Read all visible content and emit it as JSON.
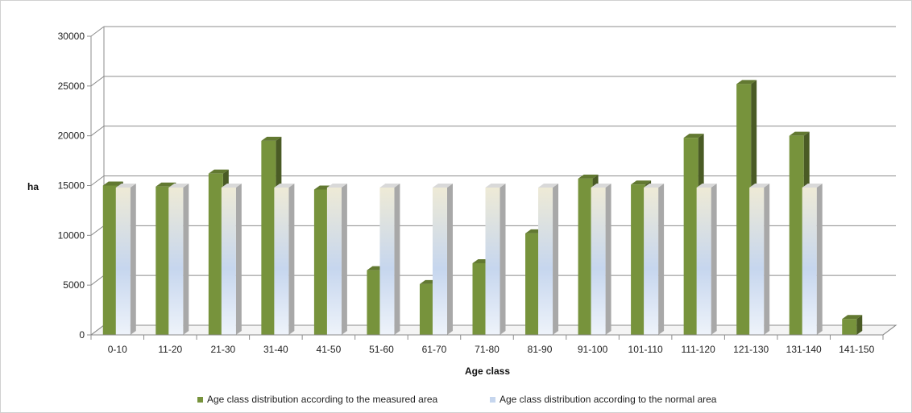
{
  "chart_data": {
    "type": "bar",
    "title": "",
    "xlabel": "Age class",
    "ylabel": "ha",
    "ylim": [
      0,
      30000
    ],
    "yticks": [
      0,
      5000,
      10000,
      15000,
      20000,
      25000,
      30000
    ],
    "grid": true,
    "legend_position": "bottom",
    "categories": [
      "0-10",
      "11-20",
      "21-30",
      "31-40",
      "41-50",
      "51-60",
      "61-70",
      "71-80",
      "81-90",
      "91-100",
      "101-110",
      "111-120",
      "121-130",
      "131-140",
      "141-150"
    ],
    "series": [
      {
        "name": "Age class distribution according to the measured area",
        "color": "#77933C",
        "values": [
          15000,
          14900,
          16200,
          19500,
          14600,
          6500,
          5100,
          7200,
          10200,
          15700,
          15100,
          19800,
          25200,
          20000,
          1600
        ]
      },
      {
        "name": "Age class distribution according to the normal area",
        "color": "#C6D9F1",
        "values": [
          14800,
          14800,
          14800,
          14800,
          14800,
          14800,
          14800,
          14800,
          14800,
          14800,
          14800,
          14800,
          14800,
          14800,
          null
        ]
      }
    ]
  }
}
